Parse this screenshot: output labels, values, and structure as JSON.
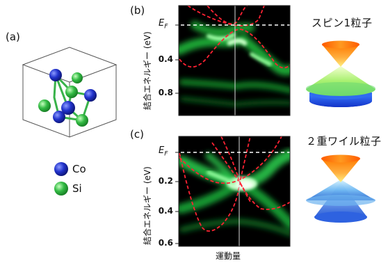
{
  "panels": {
    "a": {
      "label": "(a)"
    },
    "b": {
      "label": "(b)",
      "ticks": [
        "0.4",
        "0.8"
      ]
    },
    "c": {
      "label": "(c)",
      "ticks": [
        "0.2",
        "0.4",
        "0.6"
      ]
    }
  },
  "fermi_label": "E",
  "fermi_sub": "F",
  "ylabel": "結合エネルギー (eV)",
  "xlabel": "運動量",
  "legend": [
    {
      "label": "Co",
      "color": "#2233cc"
    },
    {
      "label": "Si",
      "color": "#33bb44"
    }
  ],
  "particles": {
    "spin1": "スピン1粒子",
    "weyl2": "２重ワイル粒子"
  },
  "colors": {
    "band": "#00ee44",
    "dirac_line": "#ff2233",
    "bg": "#000000"
  }
}
